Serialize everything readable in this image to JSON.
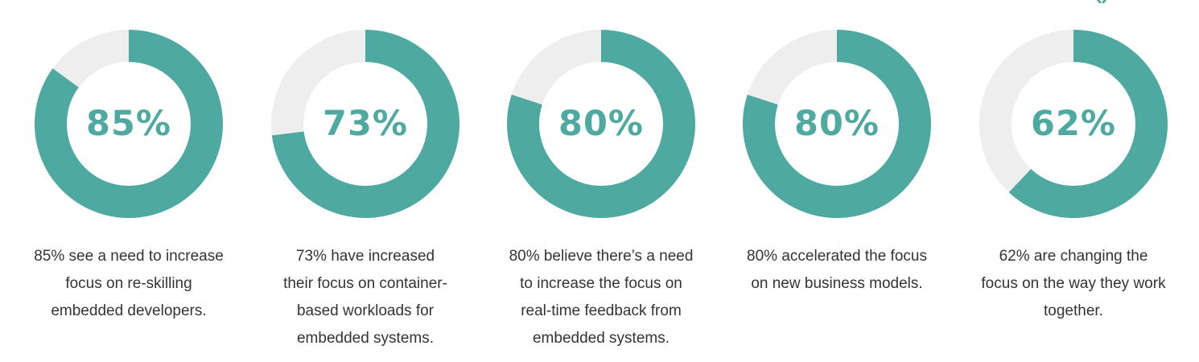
{
  "colors": {
    "accent": "#4ea9a1",
    "track": "#eeeeee",
    "text": "#333333"
  },
  "chart_data": {
    "type": "pie",
    "variant": "donut",
    "stats": [
      {
        "value": 85,
        "label": "85%",
        "description": "85% see a need to increase focus on re-skilling embedded developers."
      },
      {
        "value": 73,
        "label": "73%",
        "description": "73% have increased their focus on container-based workloads for embedded systems."
      },
      {
        "value": 80,
        "label": "80%",
        "description": "80% believe there’s a need to increase the focus on real-time feedback from embedded systems."
      },
      {
        "value": 80,
        "label": "80%",
        "description": "80% accelerated the focus on new business models."
      },
      {
        "value": 62,
        "label": "62%",
        "description": "62% are changing the focus on the way they work together."
      }
    ]
  },
  "display": {
    "lines": [
      [
        "85% see a need to increase",
        "focus on re-skilling",
        "embedded developers."
      ],
      [
        "73% have increased",
        "their focus on container-",
        "based workloads for",
        "embedded systems."
      ],
      [
        "80% believe there’s a need",
        "to increase the focus on",
        "real-time feedback from",
        "embedded systems."
      ],
      [
        "80% accelerated the focus",
        "on new business models."
      ],
      [
        "62% are changing the",
        "focus on the way they work",
        "together."
      ]
    ]
  }
}
